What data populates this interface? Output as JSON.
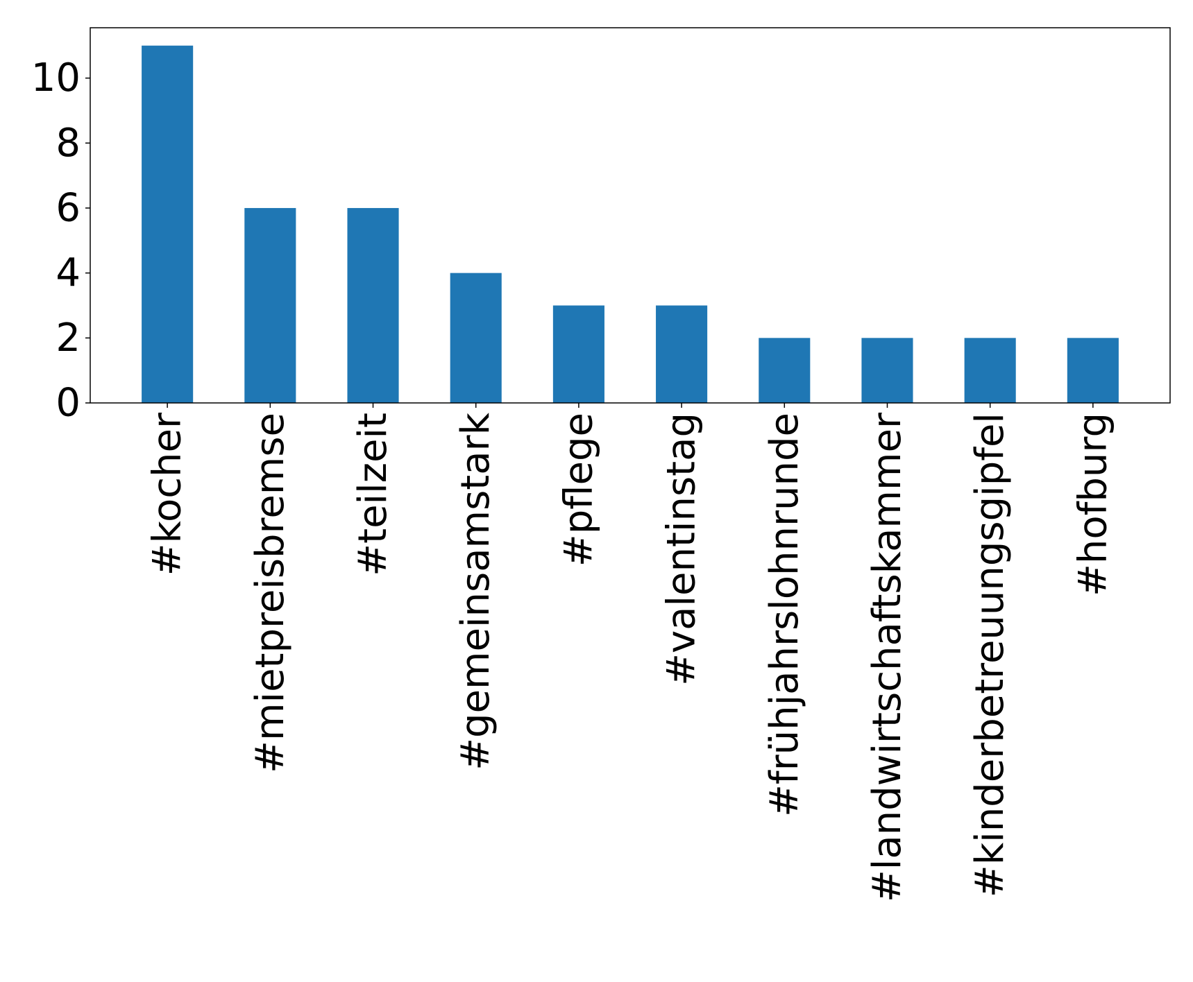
{
  "chart_data": {
    "type": "bar",
    "title": "",
    "xlabel": "",
    "ylabel": "",
    "categories": [
      "#kocher",
      "#mietpreisbremse",
      "#teilzeit",
      "#gemeinsamstark",
      "#pflege",
      "#valentinstag",
      "#frühjahrslohnrunde",
      "#landwirtschaftskammer",
      "#kinderbetreuungsgipfel",
      "#hofburg"
    ],
    "values": [
      11,
      6,
      6,
      4,
      3,
      3,
      2,
      2,
      2,
      2
    ],
    "ylim": [
      0,
      11.55
    ],
    "yticks": [
      "0",
      "2",
      "4",
      "6",
      "8",
      "10"
    ],
    "bar_color": "#1f77b4",
    "grid": false,
    "legend": "none"
  }
}
